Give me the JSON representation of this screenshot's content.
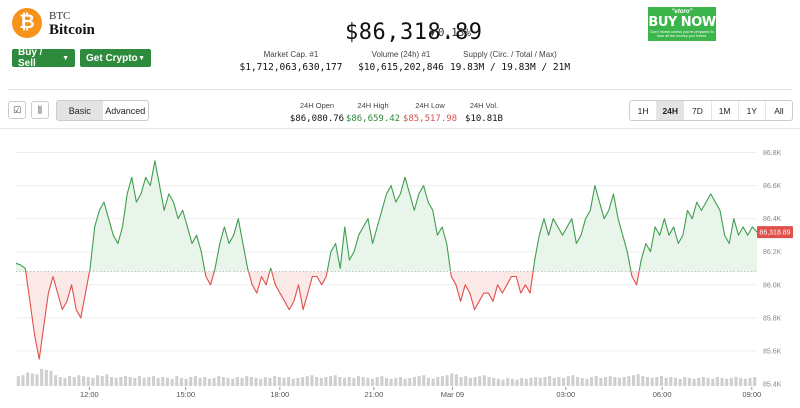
{
  "coin": {
    "logo_glyph": "₿",
    "symbol": "BTC",
    "name": "Bitcoin",
    "price": "$86,318.89",
    "change_arrow": "▼",
    "change_pct": "0.13%"
  },
  "actions": {
    "buy_sell": "Buy / Sell",
    "get_crypto": "Get Crypto",
    "caret": "▼"
  },
  "stats": [
    {
      "label": "Market Cap. #1",
      "value": "$1,712,063,630,177"
    },
    {
      "label": "Volume (24h) #1",
      "value": "$10,615,202,846"
    },
    {
      "label": "Supply (Circ. / Total / Max)",
      "value": "19.83M / 19.83M / 21M"
    }
  ],
  "ad": {
    "brand": "\"etoro\"",
    "cta": "BUY NOW",
    "disclaimer": "Don't invest unless you're prepared to lose all the money you invest."
  },
  "controls": {
    "chart_icon": "☑",
    "candle_icon": "⫼",
    "views": [
      "Basic",
      "Advanced"
    ],
    "active_view": "Basic"
  },
  "ohlc": [
    {
      "label": "24H Open",
      "value": "$86,080.76",
      "color": "#111111"
    },
    {
      "label": "24H High",
      "value": "$86,659.42",
      "color": "#2e8b3d"
    },
    {
      "label": "24H Low",
      "value": "$85,517.98",
      "color": "#d9534f"
    },
    {
      "label": "24H Vol.",
      "value": "$10.81B",
      "color": "#111111"
    }
  ],
  "ranges": [
    "1H",
    "24H",
    "7D",
    "1M",
    "1Y",
    "All"
  ],
  "active_range": "24H",
  "current_price_tag": "86,318.89",
  "colors": {
    "up": "#3f9e4f",
    "down": "#e0504a",
    "up_fill": "#e9f5ea",
    "down_fill": "#fbe9e8",
    "volume": "#cfcfcf",
    "grid": "#eeeeee",
    "tag": "#e0504a"
  },
  "chart_data": {
    "type": "line",
    "baseline": 86080.76,
    "ylim": [
      85400,
      86900
    ],
    "yticks": [
      "86.8K",
      "86.6K",
      "86.4K",
      "86.2K",
      "86.0K",
      "85.8K",
      "85.6K",
      "85.4K"
    ],
    "ytick_values": [
      86800,
      86600,
      86400,
      86200,
      86000,
      85800,
      85600,
      85400
    ],
    "xticks": [
      "12:00",
      "15:00",
      "18:00",
      "21:00",
      "Mar 09",
      "03:00",
      "06:00",
      "09:00"
    ],
    "xtick_positions": [
      0.099,
      0.229,
      0.356,
      0.483,
      0.589,
      0.742,
      0.872,
      0.993
    ],
    "prices": [
      86130,
      86120,
      86100,
      85900,
      85700,
      85550,
      85750,
      85950,
      86050,
      85950,
      85850,
      85900,
      86000,
      85850,
      85800,
      85950,
      86100,
      86350,
      86450,
      86500,
      86400,
      86300,
      86250,
      86350,
      86550,
      86650,
      86500,
      86550,
      86650,
      86600,
      86750,
      86600,
      86450,
      86550,
      86500,
      86400,
      86450,
      86350,
      86250,
      86300,
      86200,
      86050,
      86000,
      86100,
      86250,
      86350,
      86250,
      86300,
      86400,
      86250,
      86100,
      86000,
      85950,
      86050,
      86000,
      86100,
      86000,
      85950,
      85900,
      85850,
      85900,
      86000,
      85850,
      85950,
      86050,
      86050,
      86000,
      86050,
      86200,
      86250,
      86100,
      86350,
      86150,
      86200,
      86300,
      86350,
      86400,
      86250,
      86350,
      86450,
      86550,
      86600,
      86500,
      86550,
      86650,
      86550,
      86450,
      86550,
      86600,
      86500,
      86450,
      86300,
      86350,
      86250,
      86050,
      86000,
      85900,
      86000,
      85950,
      85850,
      85900,
      85950,
      85950,
      85900,
      86000,
      85950,
      86000,
      86050,
      86050,
      85950,
      86000,
      85950,
      86150,
      86300,
      86400,
      86300,
      86400,
      86350,
      86300,
      86350,
      86400,
      86250,
      86300,
      86400,
      86450,
      86600,
      86500,
      86400,
      86450,
      86550,
      86400,
      86300,
      86200,
      86050,
      86000,
      86150,
      86250,
      86200,
      86350,
      86300,
      86400,
      86300,
      86350,
      86250,
      86300,
      86450,
      86400,
      86500,
      86450,
      86500,
      86550,
      86500,
      86450,
      86300,
      86250,
      86400,
      86300,
      86350,
      86300,
      86350,
      86318.89
    ],
    "volumes": [
      0.55,
      0.6,
      0.75,
      0.7,
      0.65,
      0.95,
      0.9,
      0.85,
      0.6,
      0.5,
      0.45,
      0.55,
      0.5,
      0.6,
      0.55,
      0.5,
      0.45,
      0.6,
      0.55,
      0.65,
      0.5,
      0.45,
      0.5,
      0.55,
      0.5,
      0.45,
      0.55,
      0.45,
      0.5,
      0.55,
      0.45,
      0.5,
      0.45,
      0.4,
      0.55,
      0.45,
      0.4,
      0.5,
      0.55,
      0.45,
      0.5,
      0.4,
      0.45,
      0.55,
      0.5,
      0.45,
      0.4,
      0.5,
      0.45,
      0.55,
      0.5,
      0.45,
      0.4,
      0.5,
      0.45,
      0.55,
      0.5,
      0.45,
      0.5,
      0.4,
      0.45,
      0.5,
      0.55,
      0.6,
      0.5,
      0.45,
      0.5,
      0.55,
      0.6,
      0.5,
      0.45,
      0.5,
      0.45,
      0.55,
      0.5,
      0.45,
      0.4,
      0.5,
      0.55,
      0.45,
      0.4,
      0.45,
      0.5,
      0.4,
      0.45,
      0.5,
      0.55,
      0.6,
      0.45,
      0.4,
      0.5,
      0.55,
      0.6,
      0.7,
      0.65,
      0.5,
      0.55,
      0.45,
      0.5,
      0.55,
      0.6,
      0.5,
      0.45,
      0.4,
      0.35,
      0.45,
      0.4,
      0.35,
      0.45,
      0.4,
      0.45,
      0.5,
      0.45,
      0.5,
      0.55,
      0.45,
      0.5,
      0.45,
      0.55,
      0.6,
      0.5,
      0.45,
      0.4,
      0.5,
      0.55,
      0.45,
      0.5,
      0.55,
      0.5,
      0.45,
      0.5,
      0.55,
      0.6,
      0.65,
      0.55,
      0.5,
      0.45,
      0.5,
      0.55,
      0.45,
      0.5,
      0.45,
      0.4,
      0.5,
      0.45,
      0.4,
      0.45,
      0.5,
      0.45,
      0.4,
      0.5,
      0.45,
      0.4,
      0.45,
      0.5,
      0.45,
      0.4,
      0.45,
      0.5
    ]
  }
}
